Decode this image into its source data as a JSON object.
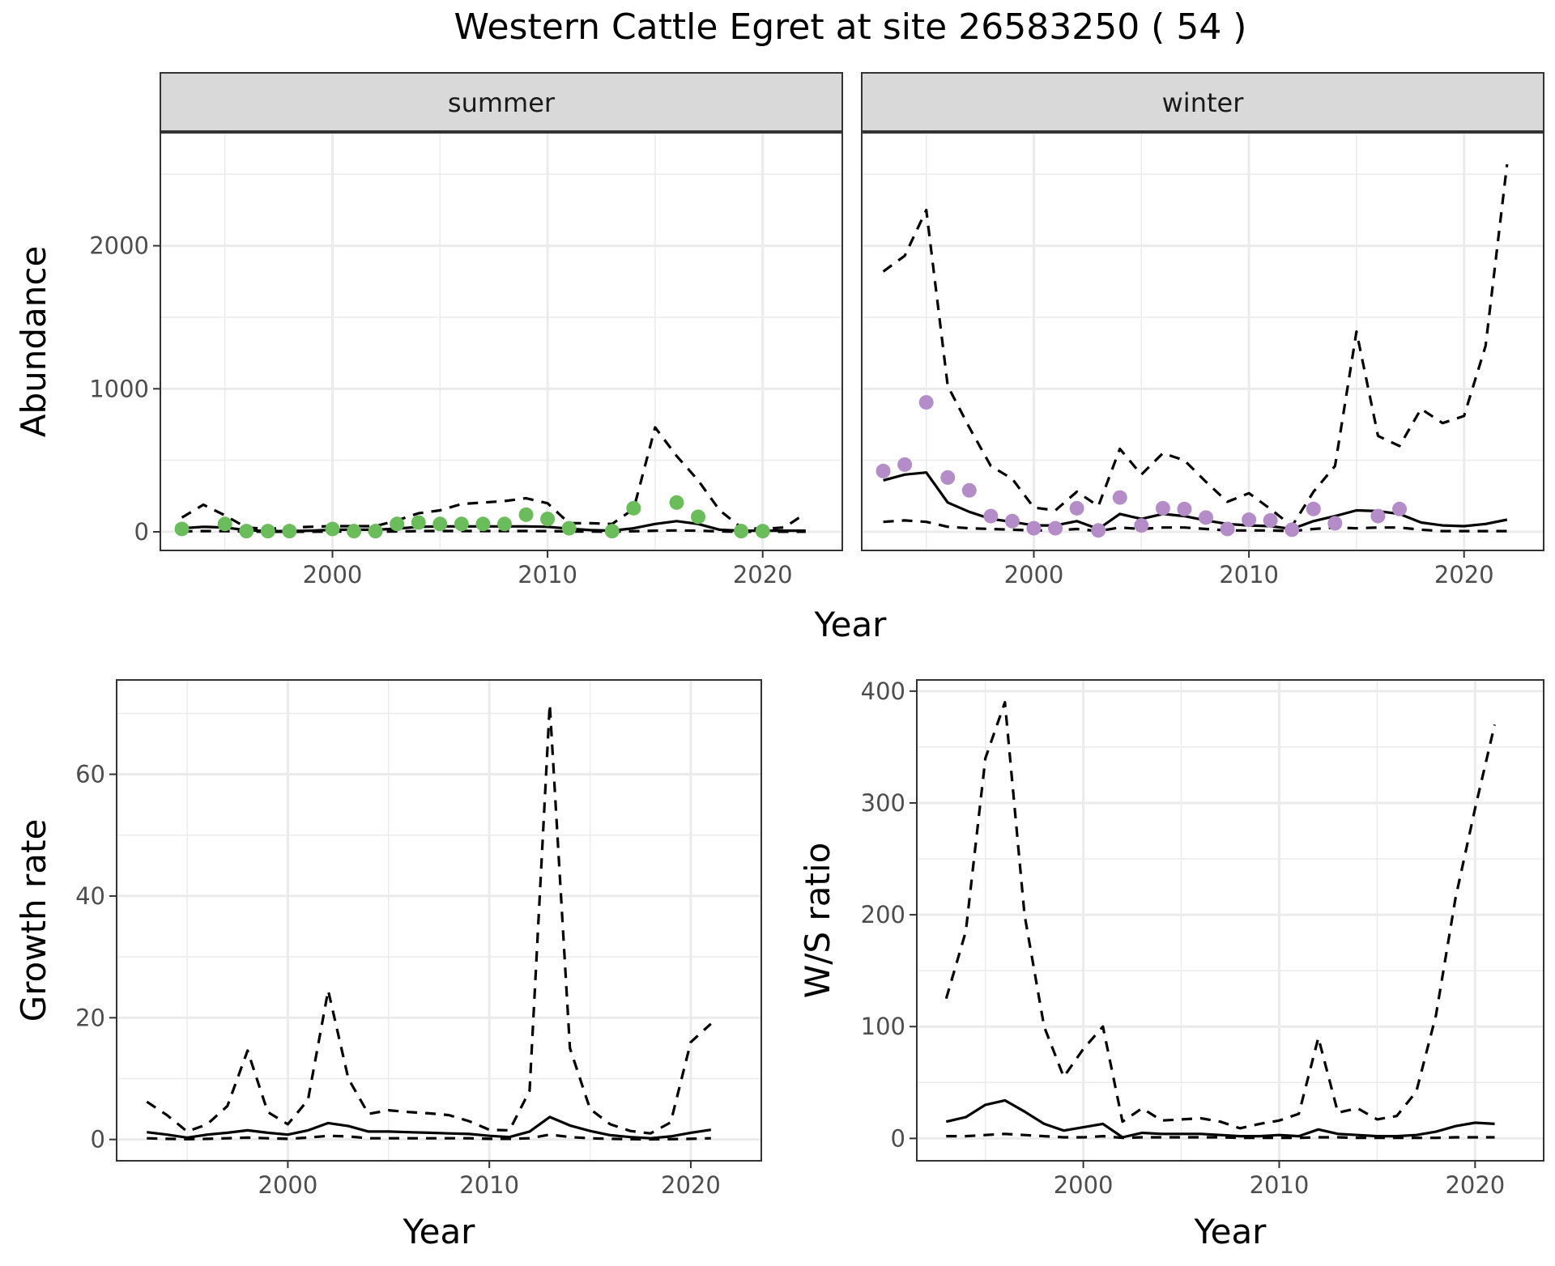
{
  "title": "Western Cattle Egret at site 26583250 ( 54 )",
  "colors": {
    "summer_points": "#6ABD5A",
    "winter_points": "#B48CC8",
    "grid": "#EBEBEB",
    "strip": "#D9D9D9"
  },
  "chart_data": [
    {
      "type": "line",
      "panel": "summer",
      "facet_label": "summer",
      "xlabel": "Year",
      "ylabel": "Abundance",
      "xlim": [
        1992.0,
        2023.7
      ],
      "ylim": [
        -130,
        2790
      ],
      "x_ticks": [
        2000,
        2010,
        2020
      ],
      "y_ticks": [
        0,
        1000,
        2000
      ],
      "grid": true,
      "points": {
        "x": [
          1993,
          1995,
          1996,
          1997,
          1998,
          2000,
          2001,
          2002,
          2003,
          2004,
          2005,
          2006,
          2007,
          2008,
          2009,
          2010,
          2011,
          2013,
          2014,
          2016,
          2017,
          2019,
          2020
        ],
        "y": [
          20,
          55,
          5,
          5,
          5,
          20,
          5,
          5,
          55,
          65,
          55,
          55,
          55,
          55,
          120,
          90,
          25,
          5,
          165,
          205,
          105,
          5,
          5
        ]
      },
      "series": [
        {
          "name": "",
          "style": "solid",
          "x": [
            1993,
            1994,
            1995,
            1996,
            1997,
            1998,
            1999,
            2000,
            2001,
            2002,
            2003,
            2004,
            2005,
            2006,
            2007,
            2008,
            2009,
            2010,
            2011,
            2012,
            2013,
            2014,
            2015,
            2016,
            2017,
            2018,
            2019,
            2020,
            2021,
            2022
          ],
          "y": [
            25,
            35,
            30,
            12,
            5,
            5,
            8,
            15,
            15,
            15,
            22,
            35,
            38,
            38,
            38,
            38,
            38,
            35,
            22,
            12,
            8,
            25,
            55,
            75,
            55,
            15,
            8,
            8,
            8,
            8
          ]
        },
        {
          "name": "",
          "style": "dashed",
          "x": [
            1993,
            1994,
            1995,
            1996,
            1997,
            1998,
            1999,
            2000,
            2001,
            2002,
            2003,
            2004,
            2005,
            2006,
            2007,
            2008,
            2009,
            2010,
            2011,
            2012,
            2013,
            2014,
            2015,
            2016,
            2017,
            2018,
            2019,
            2020,
            2021,
            2022
          ],
          "y": [
            100,
            190,
            115,
            30,
            20,
            30,
            35,
            40,
            40,
            40,
            80,
            130,
            150,
            195,
            205,
            215,
            235,
            200,
            60,
            60,
            55,
            160,
            730,
            530,
            360,
            150,
            30,
            20,
            30,
            130
          ]
        },
        {
          "name": "",
          "style": "dashed",
          "x": [
            1993,
            1994,
            1995,
            1996,
            1997,
            1998,
            1999,
            2000,
            2001,
            2002,
            2003,
            2004,
            2005,
            2006,
            2007,
            2008,
            2009,
            2010,
            2011,
            2012,
            2013,
            2014,
            2015,
            2016,
            2017,
            2018,
            2019,
            2020,
            2021,
            2022
          ],
          "y": [
            3,
            5,
            5,
            2,
            1,
            1,
            1,
            2,
            2,
            2,
            3,
            5,
            6,
            6,
            6,
            6,
            6,
            5,
            3,
            2,
            1,
            4,
            8,
            10,
            8,
            3,
            1,
            1,
            1,
            1
          ]
        }
      ]
    },
    {
      "type": "line",
      "panel": "winter",
      "facet_label": "winter",
      "xlabel": "Year",
      "ylabel": "Abundance",
      "xlim": [
        1992.0,
        2023.7
      ],
      "ylim": [
        -130,
        2790
      ],
      "x_ticks": [
        2000,
        2010,
        2020
      ],
      "y_ticks": [
        0,
        1000,
        2000
      ],
      "grid": true,
      "points": {
        "x": [
          1993,
          1994,
          1995,
          1996,
          1997,
          1998,
          1999,
          2000,
          2001,
          2002,
          2003,
          2004,
          2005,
          2006,
          2007,
          2008,
          2009,
          2010,
          2011,
          2012,
          2013,
          2014,
          2016,
          2017
        ],
        "y": [
          425,
          470,
          905,
          380,
          290,
          110,
          75,
          25,
          25,
          165,
          10,
          240,
          45,
          165,
          160,
          100,
          20,
          85,
          80,
          15,
          160,
          60,
          110,
          160
        ]
      },
      "series": [
        {
          "name": "",
          "style": "solid",
          "x": [
            1993,
            1994,
            1995,
            1996,
            1997,
            1998,
            1999,
            2000,
            2001,
            2002,
            2003,
            2004,
            2005,
            2006,
            2007,
            2008,
            2009,
            2010,
            2011,
            2012,
            2013,
            2014,
            2015,
            2016,
            2017,
            2018,
            2019,
            2020,
            2021,
            2022
          ],
          "y": [
            360,
            400,
            415,
            205,
            140,
            90,
            70,
            45,
            45,
            75,
            20,
            125,
            90,
            125,
            110,
            80,
            55,
            45,
            40,
            20,
            75,
            110,
            150,
            145,
            125,
            65,
            45,
            40,
            55,
            85
          ]
        },
        {
          "name": "",
          "style": "dashed",
          "x": [
            1993,
            1994,
            1995,
            1996,
            1997,
            1998,
            1999,
            2000,
            2001,
            2002,
            2003,
            2004,
            2005,
            2006,
            2007,
            2008,
            2009,
            2010,
            2011,
            2012,
            2013,
            2014,
            2015,
            2016,
            2017,
            2018,
            2019,
            2020,
            2021,
            2022
          ],
          "y": [
            1820,
            1930,
            2250,
            1020,
            730,
            460,
            370,
            170,
            150,
            280,
            180,
            580,
            400,
            550,
            500,
            350,
            210,
            270,
            160,
            40,
            280,
            460,
            1400,
            670,
            600,
            860,
            760,
            810,
            1300,
            2570
          ]
        },
        {
          "name": "",
          "style": "dashed",
          "x": [
            1993,
            1994,
            1995,
            1996,
            1997,
            1998,
            1999,
            2000,
            2001,
            2002,
            2003,
            2004,
            2005,
            2006,
            2007,
            2008,
            2009,
            2010,
            2011,
            2012,
            2013,
            2014,
            2015,
            2016,
            2017,
            2018,
            2019,
            2020,
            2021,
            2022
          ],
          "y": [
            70,
            80,
            70,
            35,
            25,
            20,
            15,
            10,
            10,
            20,
            5,
            30,
            20,
            30,
            30,
            20,
            10,
            10,
            10,
            5,
            20,
            30,
            25,
            30,
            30,
            15,
            5,
            5,
            5,
            5
          ]
        }
      ]
    },
    {
      "type": "line",
      "panel": "growth",
      "xlabel": "Year",
      "ylabel": "Growth rate",
      "xlim": [
        1991.5,
        2023.5
      ],
      "ylim": [
        -3.5,
        75.5
      ],
      "x_ticks": [
        2000,
        2010,
        2020
      ],
      "y_ticks": [
        0,
        20,
        40,
        60
      ],
      "grid": true,
      "series": [
        {
          "name": "",
          "style": "solid",
          "x": [
            1993,
            1994,
            1995,
            1996,
            1997,
            1998,
            1999,
            2000,
            2001,
            2002,
            2003,
            2004,
            2005,
            2006,
            2007,
            2008,
            2009,
            2010,
            2011,
            2012,
            2013,
            2014,
            2015,
            2016,
            2017,
            2018,
            2019,
            2020,
            2021
          ],
          "y": [
            1.2,
            0.8,
            0.3,
            0.8,
            1.1,
            1.5,
            1.1,
            0.8,
            1.5,
            2.7,
            2.2,
            1.3,
            1.3,
            1.2,
            1.1,
            1.0,
            0.9,
            0.6,
            0.4,
            1.3,
            3.7,
            2.3,
            1.4,
            0.7,
            0.4,
            0.2,
            0.5,
            1.1,
            1.6
          ]
        },
        {
          "name": "",
          "style": "dashed",
          "x": [
            1993,
            1994,
            1995,
            1996,
            1997,
            1998,
            1999,
            2000,
            2001,
            2002,
            2003,
            2004,
            2005,
            2006,
            2007,
            2008,
            2009,
            2010,
            2011,
            2012,
            2013,
            2014,
            2015,
            2016,
            2017,
            2018,
            2019,
            2020,
            2021
          ],
          "y": [
            6.2,
            4.0,
            1.3,
            2.5,
            5.5,
            14.6,
            4.5,
            2.5,
            6.5,
            24.5,
            10.0,
            4.2,
            4.8,
            4.5,
            4.3,
            4.0,
            3.0,
            1.6,
            1.5,
            8.0,
            71.5,
            15.0,
            5.0,
            2.5,
            1.4,
            1.0,
            2.8,
            16.0,
            19.0
          ]
        },
        {
          "name": "",
          "style": "dashed",
          "x": [
            1993,
            1994,
            1995,
            1996,
            1997,
            1998,
            1999,
            2000,
            2001,
            2002,
            2003,
            2004,
            2005,
            2006,
            2007,
            2008,
            2009,
            2010,
            2011,
            2012,
            2013,
            2014,
            2015,
            2016,
            2017,
            2018,
            2019,
            2020,
            2021
          ],
          "y": [
            0.2,
            0.1,
            0.05,
            0.1,
            0.2,
            0.3,
            0.2,
            0.1,
            0.3,
            0.6,
            0.5,
            0.2,
            0.2,
            0.2,
            0.2,
            0.2,
            0.2,
            0.1,
            0.1,
            0.2,
            0.8,
            0.4,
            0.2,
            0.1,
            0.05,
            0.02,
            0.05,
            0.1,
            0.2
          ]
        }
      ]
    },
    {
      "type": "line",
      "panel": "ws_ratio",
      "xlabel": "Year",
      "ylabel": "W/S ratio",
      "xlim": [
        1991.5,
        2023.5
      ],
      "ylim": [
        -20,
        410
      ],
      "x_ticks": [
        2000,
        2010,
        2020
      ],
      "y_ticks": [
        0,
        100,
        200,
        300,
        400
      ],
      "grid": true,
      "series": [
        {
          "name": "",
          "style": "solid",
          "x": [
            1993,
            1994,
            1995,
            1996,
            1997,
            1998,
            1999,
            2000,
            2001,
            2002,
            2003,
            2004,
            2005,
            2006,
            2007,
            2008,
            2009,
            2010,
            2011,
            2012,
            2013,
            2014,
            2015,
            2016,
            2017,
            2018,
            2019,
            2020,
            2021
          ],
          "y": [
            15,
            19,
            30,
            34,
            24,
            13,
            7,
            10,
            13,
            1,
            5,
            4,
            4,
            4,
            3,
            2,
            2,
            3,
            2,
            8,
            4,
            3,
            2,
            2,
            3,
            6,
            11,
            14,
            13
          ]
        },
        {
          "name": "",
          "style": "dashed",
          "x": [
            1993,
            1994,
            1995,
            1996,
            1997,
            1998,
            1999,
            2000,
            2001,
            2002,
            2003,
            2004,
            2005,
            2006,
            2007,
            2008,
            2009,
            2010,
            2011,
            2012,
            2013,
            2014,
            2015,
            2016,
            2017,
            2018,
            2019,
            2020,
            2021
          ],
          "y": [
            125,
            185,
            340,
            390,
            200,
            100,
            55,
            80,
            100,
            15,
            27,
            16,
            17,
            18,
            15,
            9,
            13,
            16,
            22,
            90,
            23,
            27,
            17,
            20,
            42,
            110,
            215,
            295,
            370
          ]
        },
        {
          "name": "",
          "style": "dashed",
          "x": [
            1993,
            1994,
            1995,
            1996,
            1997,
            1998,
            1999,
            2000,
            2001,
            2002,
            2003,
            2004,
            2005,
            2006,
            2007,
            2008,
            2009,
            2010,
            2011,
            2012,
            2013,
            2014,
            2015,
            2016,
            2017,
            2018,
            2019,
            2020,
            2021
          ],
          "y": [
            2,
            2,
            3,
            4,
            3,
            2,
            1,
            1,
            2,
            0.5,
            1,
            1,
            1,
            1,
            1,
            0.5,
            0.5,
            0.5,
            0.5,
            1,
            1,
            0.5,
            0.5,
            0.5,
            0.5,
            0.5,
            1,
            1,
            1
          ]
        }
      ]
    }
  ]
}
